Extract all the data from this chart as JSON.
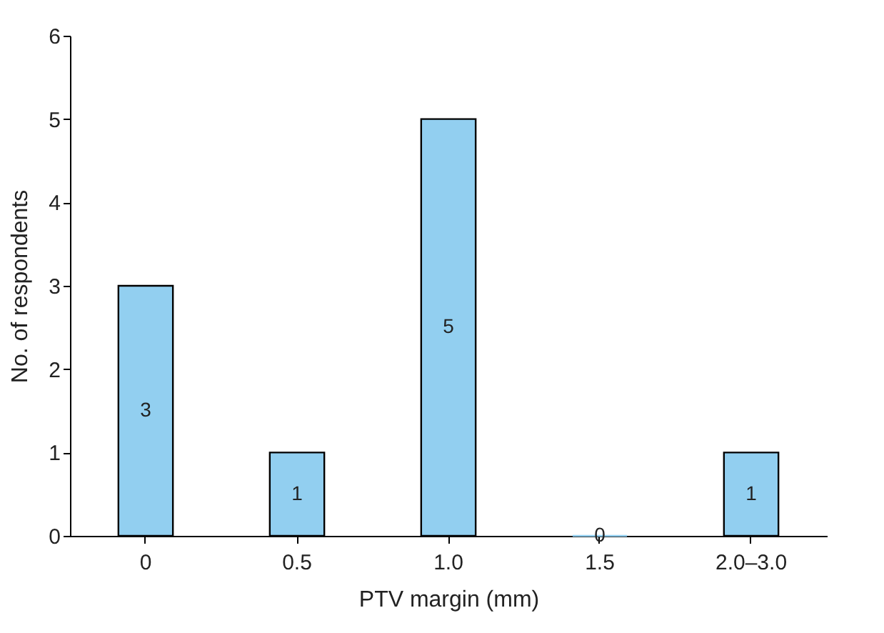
{
  "chart_data": {
    "type": "bar",
    "xlabel": "PTV margin (mm)",
    "ylabel": "No. of respondents",
    "categories": [
      "0",
      "0.5",
      "1.0",
      "1.5",
      "2.0–3.0"
    ],
    "values": [
      3,
      1,
      5,
      0,
      1
    ],
    "color": "#92cff0",
    "ylim": [
      0,
      6
    ],
    "yticks": [
      0,
      1,
      2,
      3,
      4,
      5,
      6
    ],
    "grid": false,
    "data_labels": true
  }
}
